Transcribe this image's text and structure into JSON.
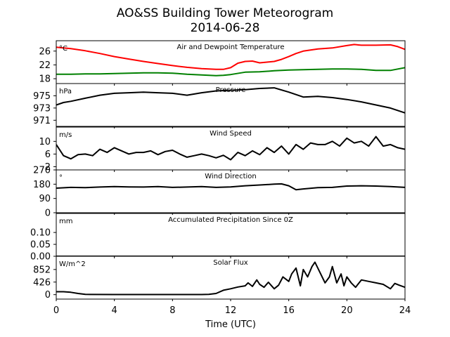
{
  "figure": {
    "title_line1": "AO&SS Building Tower Meteorogram",
    "title_line2": "2014-06-28",
    "xlabel": "Time (UTC)",
    "x_ticks": [
      0,
      4,
      8,
      12,
      16,
      20,
      24
    ],
    "colors": {
      "temperature": "#ff0000",
      "dewpoint": "#008000",
      "default": "#000000"
    }
  },
  "chart_data": [
    {
      "type": "line",
      "title": "Air and Dewpoint Temperature",
      "unit": "°C",
      "xlim": [
        0,
        24
      ],
      "ylim": [
        16.6,
        29.0
      ],
      "y_ticks": [
        18,
        22,
        26
      ],
      "series": [
        {
          "color": "#ff0000",
          "x": [
            0,
            1,
            2,
            3,
            4,
            5,
            6,
            7,
            8,
            9,
            10,
            11,
            11.5,
            12,
            12.5,
            13,
            13.5,
            14,
            14.5,
            15,
            15.5,
            16,
            16.5,
            17,
            18,
            19,
            20,
            20.5,
            21,
            22,
            23,
            23.5,
            24
          ],
          "values": [
            27.1,
            26.7,
            26.1,
            25.3,
            24.4,
            23.7,
            23.0,
            22.4,
            21.8,
            21.3,
            20.9,
            20.7,
            20.7,
            21.2,
            22.5,
            23.0,
            23.1,
            22.6,
            22.8,
            23.0,
            23.6,
            24.4,
            25.3,
            26.0,
            26.6,
            26.9,
            27.6,
            27.9,
            27.7,
            27.7,
            27.8,
            27.3,
            26.5
          ]
        },
        {
          "color": "#008000",
          "x": [
            0,
            1,
            2,
            3,
            4,
            5,
            6,
            7,
            8,
            9,
            10,
            11,
            11.5,
            12,
            13,
            14,
            15,
            16,
            17,
            18,
            19,
            20,
            21,
            22,
            23,
            24
          ],
          "values": [
            19.3,
            19.3,
            19.4,
            19.4,
            19.5,
            19.6,
            19.7,
            19.7,
            19.6,
            19.3,
            19.1,
            18.9,
            19.0,
            19.2,
            19.9,
            20.0,
            20.3,
            20.5,
            20.6,
            20.7,
            20.8,
            20.8,
            20.7,
            20.4,
            20.4,
            21.2
          ]
        }
      ]
    },
    {
      "type": "line",
      "title": "Pressure",
      "unit": "hPa",
      "xlim": [
        0,
        24
      ],
      "ylim": [
        970.0,
        977.0
      ],
      "y_ticks": [
        971,
        973,
        975
      ],
      "series": [
        {
          "color": "#000000",
          "x": [
            0,
            0.5,
            1,
            2,
            3,
            4,
            5,
            6,
            7,
            8,
            9,
            10,
            11,
            12,
            13,
            14,
            15,
            16,
            17,
            18,
            19,
            20,
            21,
            22,
            23,
            24
          ],
          "values": [
            973.5,
            973.9,
            974.1,
            974.6,
            975.1,
            975.4,
            975.5,
            975.6,
            975.5,
            975.4,
            975.1,
            975.5,
            975.8,
            975.9,
            976.0,
            976.2,
            976.3,
            975.6,
            974.8,
            974.9,
            974.7,
            974.4,
            974.0,
            973.5,
            973.0,
            972.2
          ]
        }
      ]
    },
    {
      "type": "line",
      "title": "Wind Speed",
      "unit": "m/s",
      "xlim": [
        0,
        24
      ],
      "ylim": [
        1.0,
        14.5
      ],
      "y_ticks": [
        2,
        6,
        10
      ],
      "series": [
        {
          "color": "#000000",
          "x": [
            0,
            0.5,
            1,
            1.5,
            2,
            2.5,
            3,
            3.5,
            4,
            4.5,
            5,
            5.5,
            6,
            6.5,
            7,
            7.5,
            8,
            8.5,
            9,
            9.5,
            10,
            10.5,
            11,
            11.5,
            12,
            12.5,
            13,
            13.5,
            14,
            14.5,
            15,
            15.5,
            16,
            16.5,
            17,
            17.5,
            18,
            18.5,
            19,
            19.5,
            20,
            20.5,
            21,
            21.5,
            22,
            22.5,
            23,
            23.5,
            24
          ],
          "values": [
            9.0,
            5.5,
            4.5,
            5.8,
            6.0,
            5.5,
            7.5,
            6.5,
            8.0,
            7.0,
            6.0,
            6.5,
            6.5,
            7.0,
            5.8,
            6.8,
            7.2,
            6.0,
            5.0,
            5.5,
            6.0,
            5.5,
            4.8,
            5.6,
            4.2,
            6.5,
            5.5,
            7.0,
            5.8,
            8.0,
            6.5,
            8.5,
            6.0,
            9.0,
            7.5,
            9.5,
            9.0,
            9.0,
            10.0,
            8.5,
            11.0,
            9.5,
            10.0,
            8.5,
            11.5,
            8.5,
            9.0,
            8.0,
            7.5
          ]
        }
      ]
    },
    {
      "type": "line",
      "title": "Wind Direction",
      "unit": "°",
      "xlim": [
        0,
        24
      ],
      "ylim": [
        0,
        270
      ],
      "y_ticks": [
        0,
        90,
        180,
        270
      ],
      "series": [
        {
          "color": "#000000",
          "x": [
            0,
            1,
            2,
            3,
            4,
            5,
            6,
            7,
            8,
            9,
            10,
            11,
            12,
            13,
            14,
            15,
            15.5,
            16,
            16.5,
            17,
            18,
            19,
            20,
            21,
            22,
            23,
            24
          ],
          "values": [
            155,
            160,
            158,
            162,
            165,
            163,
            162,
            165,
            160,
            162,
            165,
            160,
            163,
            170,
            175,
            180,
            182,
            170,
            145,
            150,
            158,
            160,
            168,
            170,
            168,
            165,
            160
          ]
        }
      ]
    },
    {
      "type": "line",
      "title": "Accumulated Precipitation Since 0Z",
      "unit": "mm",
      "xlim": [
        0,
        24
      ],
      "ylim": [
        0,
        0.18
      ],
      "y_ticks": [
        0.0,
        0.05,
        0.1
      ],
      "y_tick_labels": [
        "0.00",
        "0.05",
        "0.10"
      ],
      "series": [
        {
          "color": "#000000",
          "x": [
            0,
            24
          ],
          "values": [
            0,
            0
          ]
        }
      ]
    },
    {
      "type": "line",
      "title": "Solar Flux",
      "unit": "W/m^2",
      "xlim": [
        0,
        24
      ],
      "ylim": [
        -150,
        1300
      ],
      "y_ticks": [
        0,
        426,
        852
      ],
      "series": [
        {
          "color": "#000000",
          "x": [
            0,
            0.5,
            1,
            1.5,
            2,
            4,
            6,
            8,
            10,
            10.5,
            11,
            11.5,
            12,
            12.5,
            13,
            13.2,
            13.5,
            13.8,
            14,
            14.3,
            14.6,
            15,
            15.3,
            15.6,
            16,
            16.2,
            16.5,
            16.8,
            17,
            17.3,
            17.6,
            17.8,
            18.2,
            18.5,
            18.8,
            19,
            19.3,
            19.6,
            19.8,
            20,
            20.3,
            20.6,
            21,
            21.5,
            22,
            22.5,
            23,
            23.3,
            23.6,
            24
          ],
          "values": [
            100,
            100,
            80,
            40,
            10,
            5,
            5,
            5,
            5,
            10,
            40,
            150,
            200,
            260,
            300,
            400,
            280,
            500,
            350,
            250,
            420,
            200,
            320,
            600,
            450,
            700,
            900,
            300,
            850,
            600,
            950,
            1100,
            700,
            400,
            600,
            950,
            400,
            700,
            300,
            600,
            400,
            250,
            500,
            450,
            400,
            350,
            200,
            380,
            320,
            250
          ]
        }
      ]
    }
  ]
}
